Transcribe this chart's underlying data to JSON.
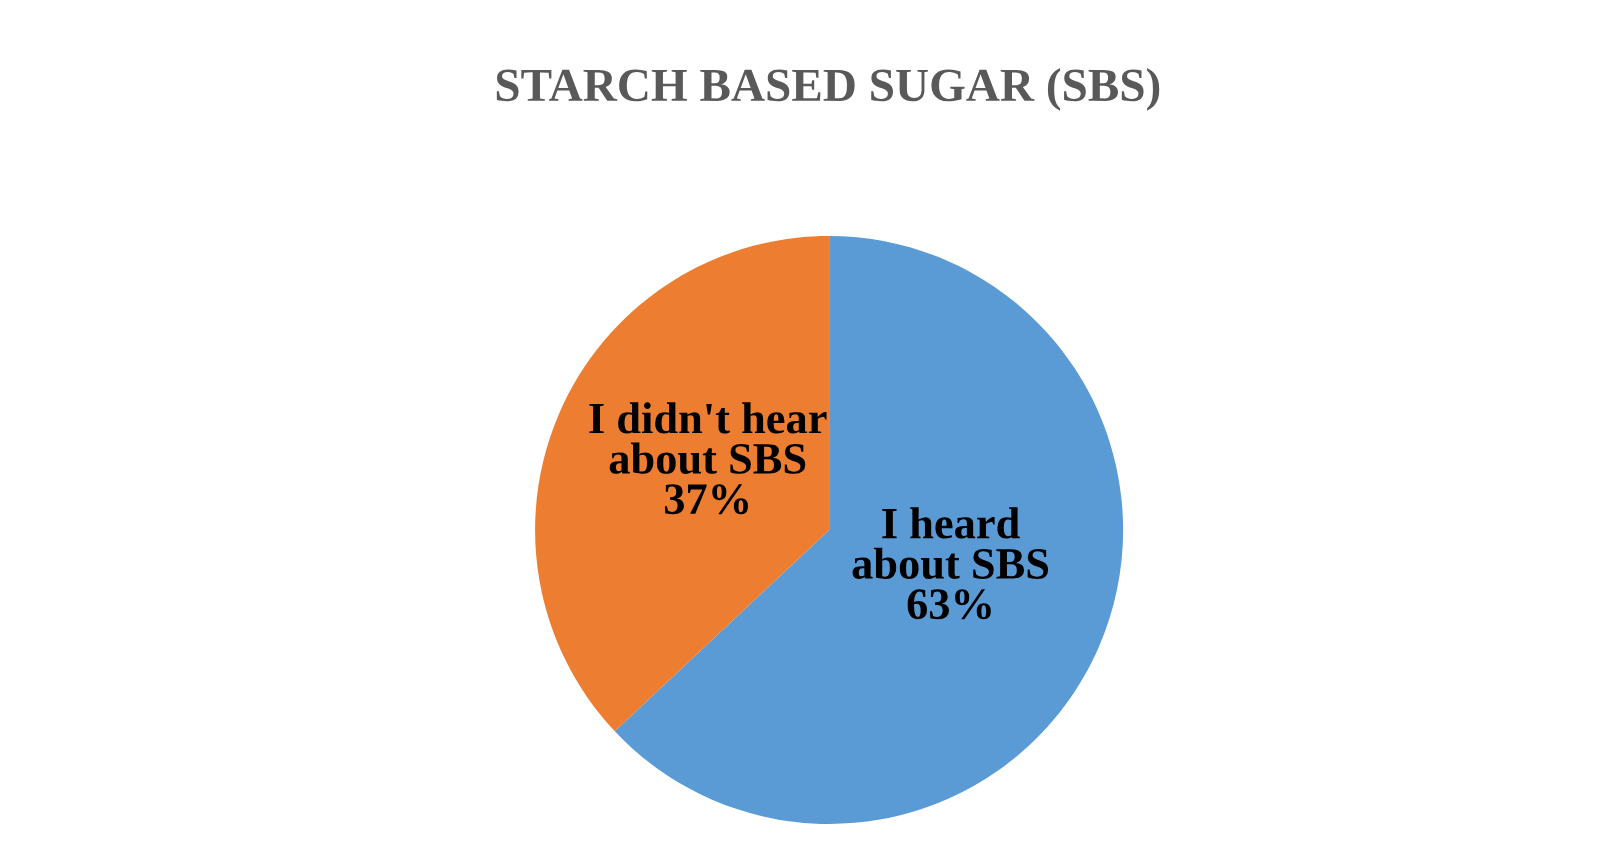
{
  "chart_data": {
    "type": "pie",
    "title": "STARCH BASED SUGAR (SBS)",
    "categories": [
      "I heard\nabout SBS",
      "I didn't hear\nabout SBS"
    ],
    "values": [
      63,
      37
    ],
    "value_labels": [
      "63%",
      "37%"
    ],
    "colors": [
      "#5b9bd5",
      "#ed7d31"
    ],
    "legend": false
  }
}
